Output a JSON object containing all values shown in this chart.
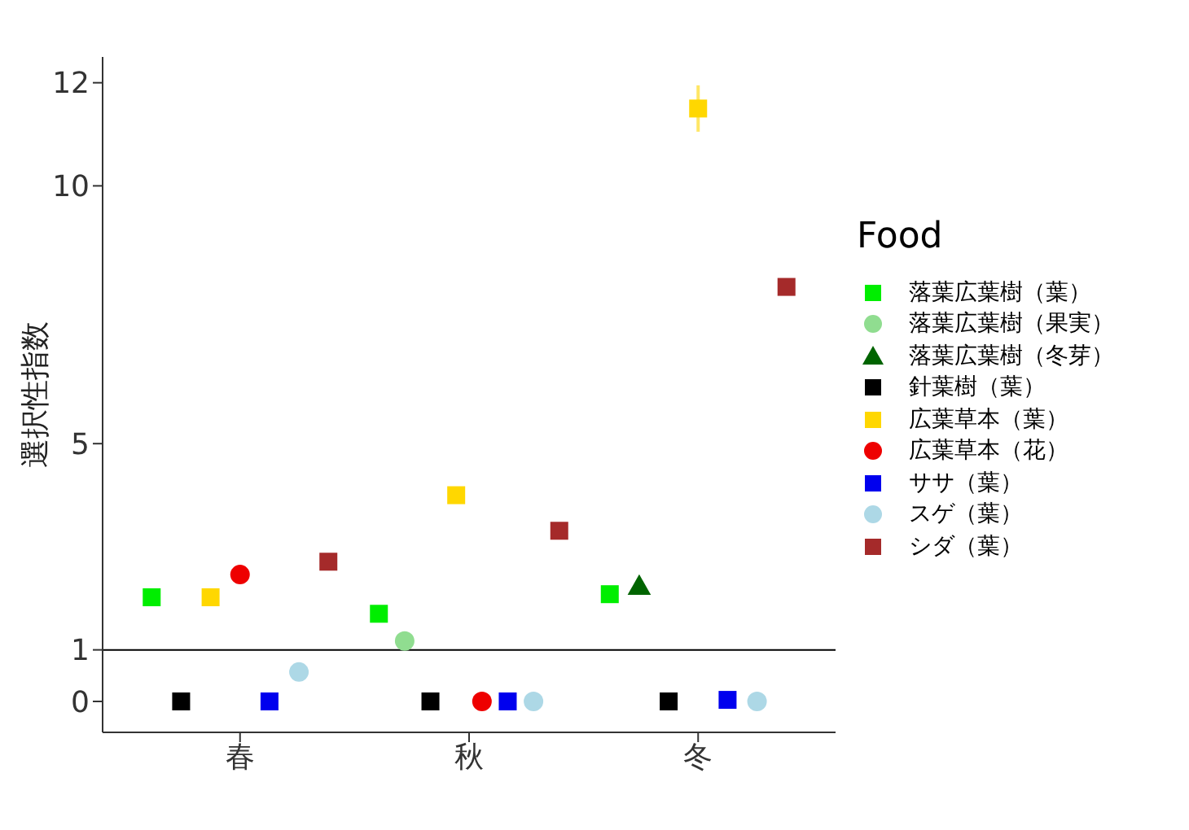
{
  "chart_data": {
    "type": "scatter",
    "ylabel": "選択性指数",
    "legend_title": "Food",
    "legend": "right",
    "grid": false,
    "categories": [
      "春",
      "秋",
      "冬"
    ],
    "ylim": [
      -0.6,
      12.5
    ],
    "yticks": [
      0,
      1,
      5,
      10,
      12
    ],
    "ref_lines": [
      {
        "axis": "y",
        "value": 1,
        "color": "#000000"
      }
    ],
    "series": [
      {
        "name": "落葉広葉樹（葉）",
        "color": "#00ee00",
        "marker": "square",
        "values": [
          2.02,
          1.7,
          2.08
        ]
      },
      {
        "name": "落葉広葉樹（果実）",
        "color": "#90dd90",
        "marker": "circle",
        "values": [
          null,
          1.17,
          null
        ]
      },
      {
        "name": "落葉広葉樹（冬芽）",
        "color": "#006400",
        "marker": "triangle",
        "values": [
          null,
          null,
          2.24
        ]
      },
      {
        "name": "針葉樹（葉）",
        "color": "#000000",
        "marker": "square",
        "values": [
          0,
          0,
          0
        ]
      },
      {
        "name": "広葉草本（葉）",
        "color": "#ffd700",
        "marker": "square",
        "values": [
          2.02,
          4.0,
          11.5
        ],
        "errors": [
          null,
          null,
          0.45
        ]
      },
      {
        "name": "広葉草本（花）",
        "color": "#ee0000",
        "marker": "circle",
        "values": [
          2.46,
          0,
          null
        ]
      },
      {
        "name": "ササ（葉）",
        "color": "#0000ee",
        "marker": "square",
        "values": [
          0,
          0,
          0.03
        ]
      },
      {
        "name": "スゲ（葉）",
        "color": "#add8e6",
        "marker": "circle",
        "values": [
          0.57,
          0,
          0
        ]
      },
      {
        "name": "シダ（葉）",
        "color": "#a52a2a",
        "marker": "square",
        "values": [
          2.71,
          3.31,
          8.04
        ],
        "errors": [
          null,
          null,
          0.15
        ]
      }
    ]
  }
}
